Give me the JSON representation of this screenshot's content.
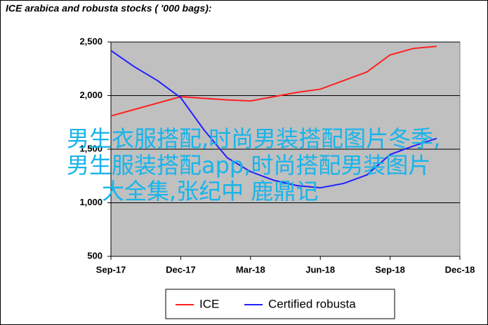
{
  "chart_data": {
    "type": "line",
    "title": "ICE arabica and robusta stocks ( '000 bags):",
    "x": [
      0,
      1,
      2,
      3,
      4,
      5,
      6,
      7,
      8,
      9,
      10,
      11,
      12,
      13,
      14
    ],
    "series": [
      {
        "name": "ICE",
        "color": "#ff2020",
        "values": [
          1810,
          1870,
          1930,
          1990,
          1975,
          1960,
          1950,
          1990,
          2030,
          2060,
          2140,
          2220,
          2380,
          2440,
          2460
        ]
      },
      {
        "name": "Certified robusta",
        "color": "#2020ff",
        "values": [
          2420,
          2270,
          2140,
          1980,
          1680,
          1420,
          1290,
          1210,
          1160,
          1140,
          1180,
          1260,
          1450,
          1530,
          1600
        ]
      }
    ],
    "xlim": [
      0,
      15
    ],
    "xticks": [
      {
        "value": 0,
        "label": "Sep-17"
      },
      {
        "value": 3,
        "label": "Dec-17"
      },
      {
        "value": 6,
        "label": "Mar-18"
      },
      {
        "value": 9,
        "label": "Jun-18"
      },
      {
        "value": 12,
        "label": "Sep-18"
      },
      {
        "value": 15,
        "label": "Dec-18"
      }
    ],
    "ylim": [
      500,
      2500
    ],
    "yticks": [
      {
        "value": 500,
        "label": "500"
      },
      {
        "value": 1000,
        "label": "1,000"
      },
      {
        "value": 1500,
        "label": "1,500"
      },
      {
        "value": 2000,
        "label": "2,000"
      },
      {
        "value": 2500,
        "label": "2,500"
      }
    ],
    "grid": true,
    "annotations": [
      "男生衣服搭配,时尚男装搭配图片冬季,",
      "男生服装搭配app,时尚搭配男装图片",
      "大全集,张纪中 鹿鼎记"
    ]
  }
}
